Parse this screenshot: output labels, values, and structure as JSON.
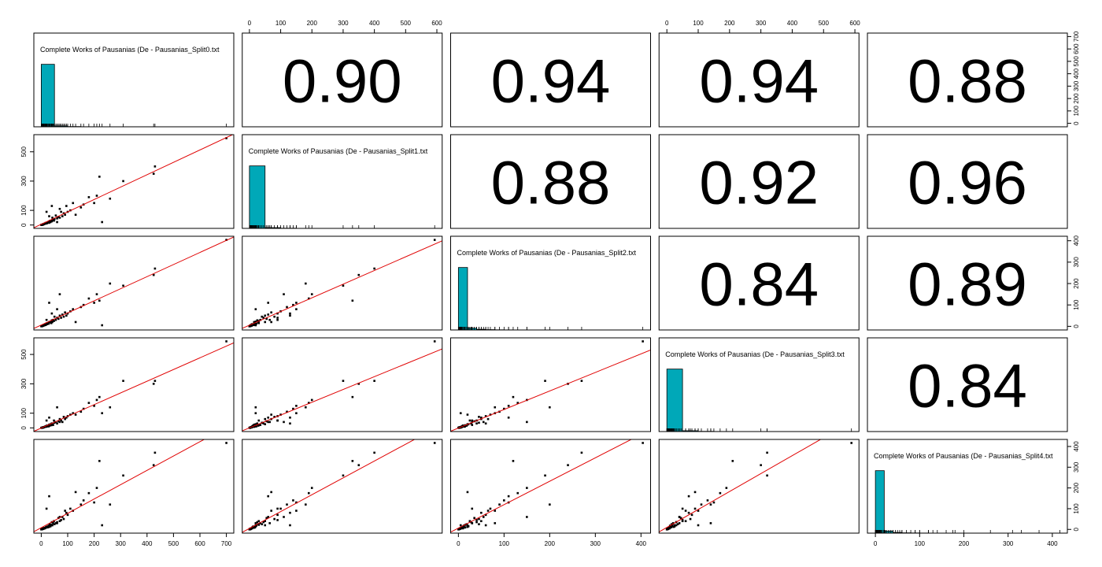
{
  "chart_data": {
    "type": "pairs",
    "hist_color": "#00A8B8",
    "line_color": "#e00000",
    "point_color": "#000000",
    "variables": [
      {
        "name": "Complete Works of Pausanias (De - Pausanias_Split0.txt",
        "lim": [
          -28,
          728
        ],
        "xticks": [
          0,
          100,
          200,
          300,
          400,
          500,
          600,
          700
        ],
        "yticks": [
          0,
          100,
          200,
          300,
          400,
          500,
          600,
          700
        ],
        "hist": {
          "bins": [
            0,
            50,
            100,
            150,
            200,
            250,
            300,
            350,
            400,
            450,
            500,
            550,
            600,
            650,
            700
          ],
          "counts": [
            2900,
            40,
            12,
            5,
            3,
            1,
            0,
            1,
            1,
            0,
            0,
            0,
            0,
            1
          ]
        }
      },
      {
        "name": "Complete Works of Pausanias (De - Pausanias_Split1.txt",
        "lim": [
          -23,
          617
        ],
        "xticks": [
          0,
          100,
          200,
          300,
          400,
          500,
          600
        ],
        "yticks": [
          0,
          100,
          300,
          500
        ],
        "hist": {
          "bins": [
            0,
            50,
            100,
            150,
            200,
            250,
            300,
            350,
            400,
            450,
            500,
            550,
            600
          ],
          "counts": [
            2950,
            35,
            10,
            4,
            2,
            1,
            1,
            1,
            1,
            0,
            0,
            1
          ]
        }
      },
      {
        "name": "Complete Works of Pausanias (De - Pausanias_Split2.txt",
        "lim": [
          -17,
          421
        ],
        "xticks": [
          0,
          100,
          200,
          300,
          400
        ],
        "yticks": [
          0,
          100,
          200,
          300,
          400
        ],
        "hist": {
          "bins": [
            0,
            20,
            40,
            60,
            80,
            100,
            120,
            140,
            160,
            180,
            200,
            220,
            240,
            260,
            280,
            300,
            320,
            340,
            360,
            380,
            400,
            420
          ],
          "counts": [
            2800,
            80,
            30,
            15,
            8,
            5,
            3,
            2,
            2,
            1,
            1,
            0,
            1,
            0,
            1,
            0,
            0,
            0,
            0,
            0,
            1
          ]
        }
      },
      {
        "name": "Complete Works of Pausanias (De - Pausanias_Split3.txt",
        "lim": [
          -25,
          613
        ],
        "xticks": [
          0,
          100,
          200,
          300,
          400,
          500,
          600
        ],
        "yticks": [
          0,
          100,
          300,
          500
        ],
        "hist": {
          "bins": [
            0,
            50,
            100,
            150,
            200,
            250,
            300,
            350,
            400,
            450,
            500,
            550,
            600
          ],
          "counts": [
            2940,
            38,
            11,
            5,
            2,
            1,
            1,
            1,
            0,
            0,
            0,
            1
          ]
        }
      },
      {
        "name": "Complete Works of Pausanias (De - Pausanias_Split4.txt",
        "lim": [
          -18,
          434
        ],
        "xticks": [
          0,
          100,
          200,
          300,
          400
        ],
        "yticks": [
          0,
          100,
          200,
          300,
          400
        ],
        "hist": {
          "bins": [
            0,
            20,
            40,
            60,
            80,
            100,
            120,
            140,
            160,
            180,
            200,
            220,
            240,
            260,
            280,
            300,
            320,
            340,
            360,
            380,
            400,
            420
          ],
          "counts": [
            2780,
            90,
            32,
            14,
            9,
            5,
            3,
            2,
            2,
            1,
            1,
            0,
            1,
            0,
            0,
            0,
            1,
            0,
            1,
            0,
            1
          ]
        }
      }
    ],
    "correlations": [
      [
        0.9,
        0.94,
        0.94,
        0.88
      ],
      [
        0.88,
        0.92,
        0.96
      ],
      [
        0.84,
        0.89
      ],
      [
        0.84
      ]
    ],
    "correlation_labels": [
      [
        "0.90",
        "0.94",
        "0.94",
        "0.88"
      ],
      [
        "0.88",
        "0.92",
        "0.96"
      ],
      [
        "0.84",
        "0.89"
      ],
      [
        "0.84"
      ]
    ],
    "observations": [
      [
        700,
        593,
        404,
        589,
        417
      ],
      [
        430,
        400,
        270,
        320,
        370
      ],
      [
        425,
        350,
        240,
        300,
        310
      ],
      [
        310,
        300,
        190,
        320,
        260
      ],
      [
        220,
        330,
        120,
        210,
        330
      ],
      [
        210,
        200,
        150,
        190,
        200
      ],
      [
        200,
        150,
        110,
        150,
        130
      ],
      [
        180,
        190,
        130,
        170,
        175
      ],
      [
        160,
        140,
        100,
        130,
        140
      ],
      [
        150,
        120,
        90,
        110,
        120
      ],
      [
        120,
        150,
        80,
        100,
        90
      ],
      [
        110,
        100,
        70,
        90,
        100
      ],
      [
        100,
        90,
        60,
        80,
        70
      ],
      [
        95,
        130,
        50,
        70,
        80
      ],
      [
        90,
        70,
        65,
        60,
        90
      ],
      [
        85,
        80,
        45,
        75,
        50
      ],
      [
        80,
        60,
        55,
        40,
        60
      ],
      [
        75,
        90,
        40,
        50,
        45
      ],
      [
        70,
        50,
        50,
        60,
        40
      ],
      [
        65,
        55,
        35,
        45,
        55
      ],
      [
        60,
        45,
        40,
        30,
        35
      ],
      [
        55,
        65,
        30,
        40,
        30
      ],
      [
        50,
        40,
        45,
        35,
        25
      ],
      [
        48,
        30,
        25,
        50,
        40
      ],
      [
        45,
        35,
        30,
        20,
        30
      ],
      [
        42,
        50,
        20,
        25,
        20
      ],
      [
        40,
        25,
        28,
        30,
        35
      ],
      [
        38,
        30,
        15,
        18,
        22
      ],
      [
        35,
        20,
        22,
        25,
        15
      ],
      [
        32,
        28,
        18,
        15,
        25
      ],
      [
        30,
        15,
        20,
        22,
        12
      ],
      [
        28,
        22,
        12,
        10,
        18
      ],
      [
        25,
        18,
        15,
        14,
        10
      ],
      [
        22,
        12,
        10,
        16,
        14
      ],
      [
        20,
        16,
        14,
        8,
        9
      ],
      [
        18,
        10,
        8,
        12,
        11
      ],
      [
        16,
        14,
        6,
        7,
        8
      ],
      [
        14,
        8,
        10,
        9,
        5
      ],
      [
        12,
        9,
        5,
        6,
        7
      ],
      [
        10,
        6,
        7,
        4,
        6
      ],
      [
        9,
        5,
        4,
        5,
        3
      ],
      [
        8,
        7,
        3,
        3,
        5
      ],
      [
        7,
        3,
        5,
        2,
        4
      ],
      [
        6,
        4,
        2,
        4,
        2
      ],
      [
        5,
        2,
        3,
        1,
        3
      ],
      [
        4,
        3,
        1,
        2,
        1
      ],
      [
        3,
        1,
        2,
        1,
        2
      ],
      [
        2,
        2,
        1,
        0,
        1
      ],
      [
        1,
        0,
        0,
        1,
        0
      ],
      [
        0,
        1,
        1,
        0,
        0
      ],
      [
        230,
        20,
        5,
        100,
        20
      ],
      [
        40,
        130,
        60,
        30,
        20
      ],
      [
        30,
        60,
        110,
        70,
        160
      ],
      [
        60,
        20,
        80,
        140,
        30
      ],
      [
        130,
        70,
        20,
        90,
        180
      ],
      [
        260,
        180,
        200,
        140,
        120
      ],
      [
        20,
        90,
        30,
        50,
        100
      ],
      [
        70,
        110,
        150,
        40,
        60
      ]
    ]
  }
}
